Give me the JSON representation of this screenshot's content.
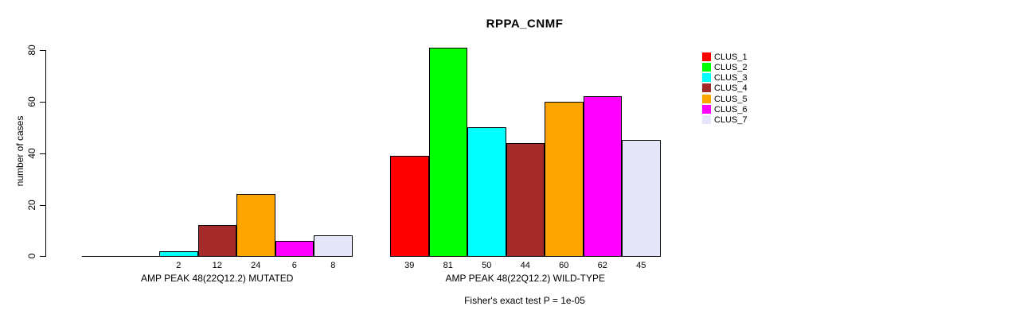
{
  "chart_data": {
    "type": "bar",
    "title": "RPPA_CNMF",
    "ylabel": "number of cases",
    "yticks": [
      0,
      20,
      40,
      60,
      80
    ],
    "ylim": [
      0,
      80
    ],
    "grid": false,
    "legend_position": "right",
    "clusters": [
      {
        "name": "CLUS_1",
        "color": "#FF0000"
      },
      {
        "name": "CLUS_2",
        "color": "#00FF00"
      },
      {
        "name": "CLUS_3",
        "color": "#00FFFF"
      },
      {
        "name": "CLUS_4",
        "color": "#A52A2A"
      },
      {
        "name": "CLUS_5",
        "color": "#FFA500"
      },
      {
        "name": "CLUS_6",
        "color": "#FF00FF"
      },
      {
        "name": "CLUS_7",
        "color": "#E6E6FA"
      }
    ],
    "groups": [
      {
        "label": "AMP PEAK 48(22Q12.2) MUTATED",
        "values": [
          0,
          0,
          2,
          12,
          24,
          6,
          8
        ]
      },
      {
        "label": "AMP PEAK 48(22Q12.2) WILD-TYPE",
        "values": [
          39,
          81,
          50,
          44,
          60,
          62,
          45
        ]
      }
    ],
    "footnote": "Fisher's exact test P = 1e-05",
    "colors": {
      "background": "#FFFFFF",
      "axis": "#000000",
      "text": "#000000",
      "bar_border": "#000000"
    }
  }
}
